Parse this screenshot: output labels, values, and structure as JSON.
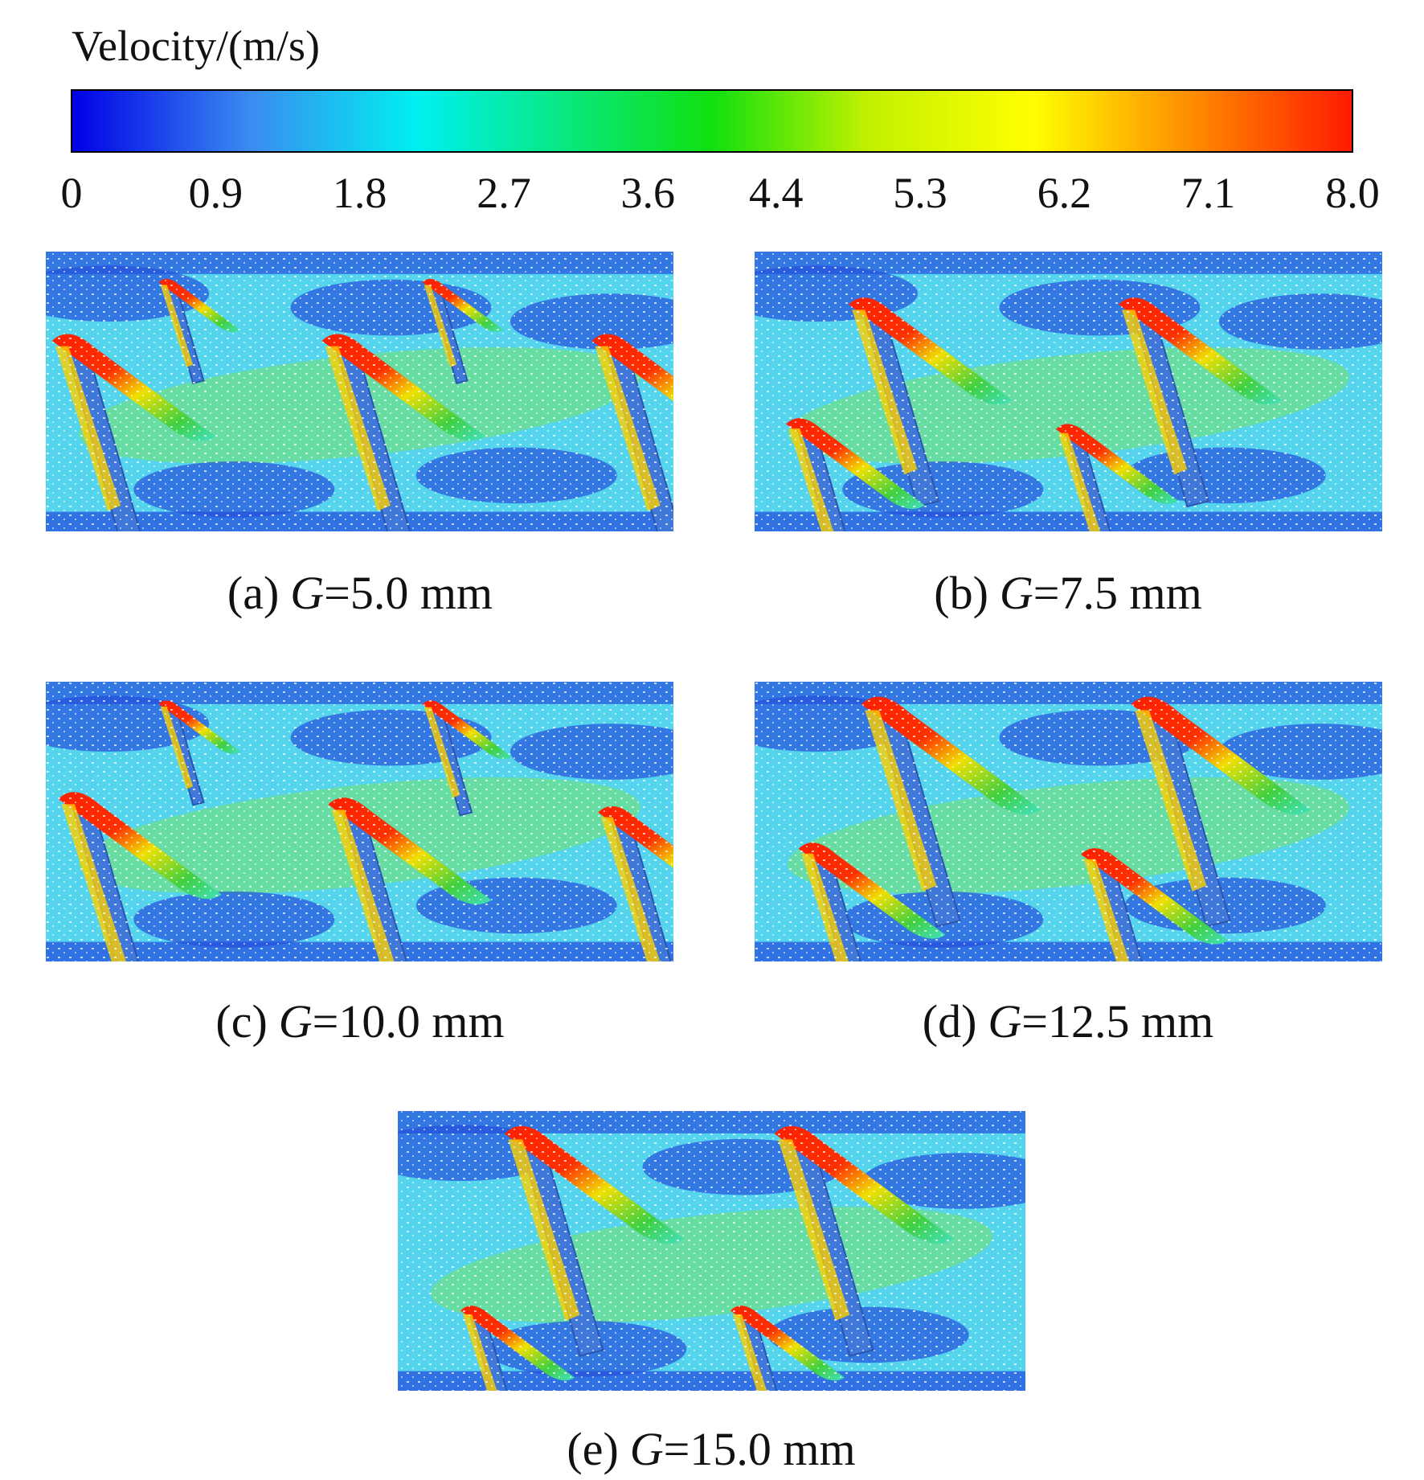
{
  "colorbar": {
    "title": "Velocity/(m/s)",
    "range": [
      0,
      8
    ],
    "ticks": [
      0,
      0.9,
      1.8,
      2.7,
      3.6,
      4.4,
      5.3,
      6.2,
      7.1,
      {
        "value": 8,
        "label": "8.0"
      }
    ]
  },
  "panels": [
    {
      "tag": "(a)",
      "symbol": "G",
      "text": "=5.0 mm"
    },
    {
      "tag": "(b)",
      "symbol": "G",
      "text": "=7.5 mm"
    },
    {
      "tag": "(c)",
      "symbol": "G",
      "text": "=10.0 mm"
    },
    {
      "tag": "(d)",
      "symbol": "G",
      "text": "=12.5 mm"
    },
    {
      "tag": "(e)",
      "symbol": "G",
      "text": "=15.0 mm"
    }
  ]
}
